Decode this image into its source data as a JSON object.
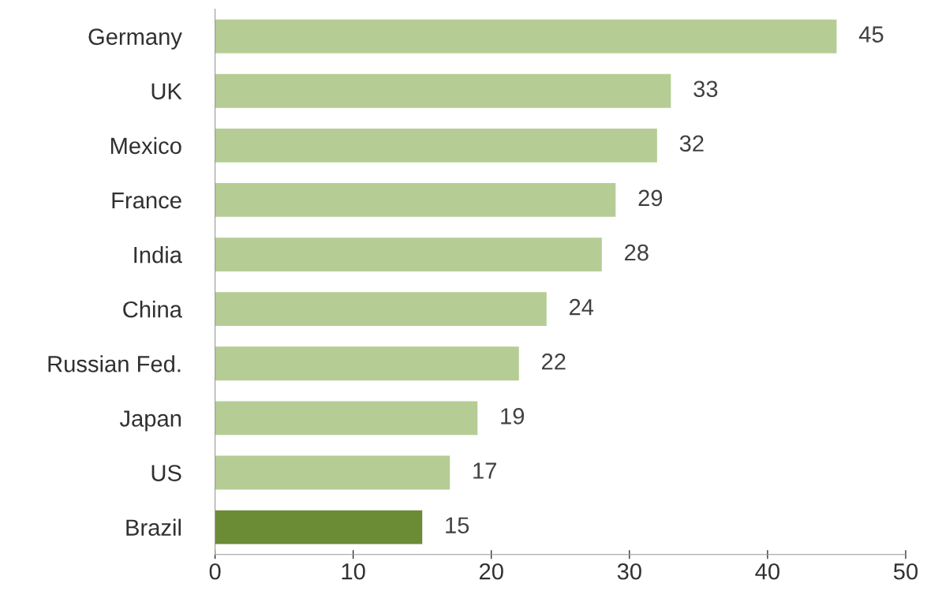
{
  "chart_data": {
    "type": "bar",
    "orientation": "horizontal",
    "categories": [
      "Germany",
      "UK",
      "Mexico",
      "France",
      "India",
      "China",
      "Russian Fed.",
      "Japan",
      "US",
      "Brazil"
    ],
    "values": [
      45,
      33,
      32,
      29,
      28,
      24,
      22,
      19,
      17,
      15
    ],
    "colors": [
      "#b5cd94",
      "#b5cd94",
      "#b5cd94",
      "#b5cd94",
      "#b5cd94",
      "#b5cd94",
      "#b5cd94",
      "#b5cd94",
      "#b5cd94",
      "#6b8b35"
    ],
    "xlim": [
      0,
      50
    ],
    "xticks": [
      0,
      10,
      20,
      30,
      40,
      50
    ],
    "data_labels": true,
    "grid": false,
    "legend": false
  }
}
